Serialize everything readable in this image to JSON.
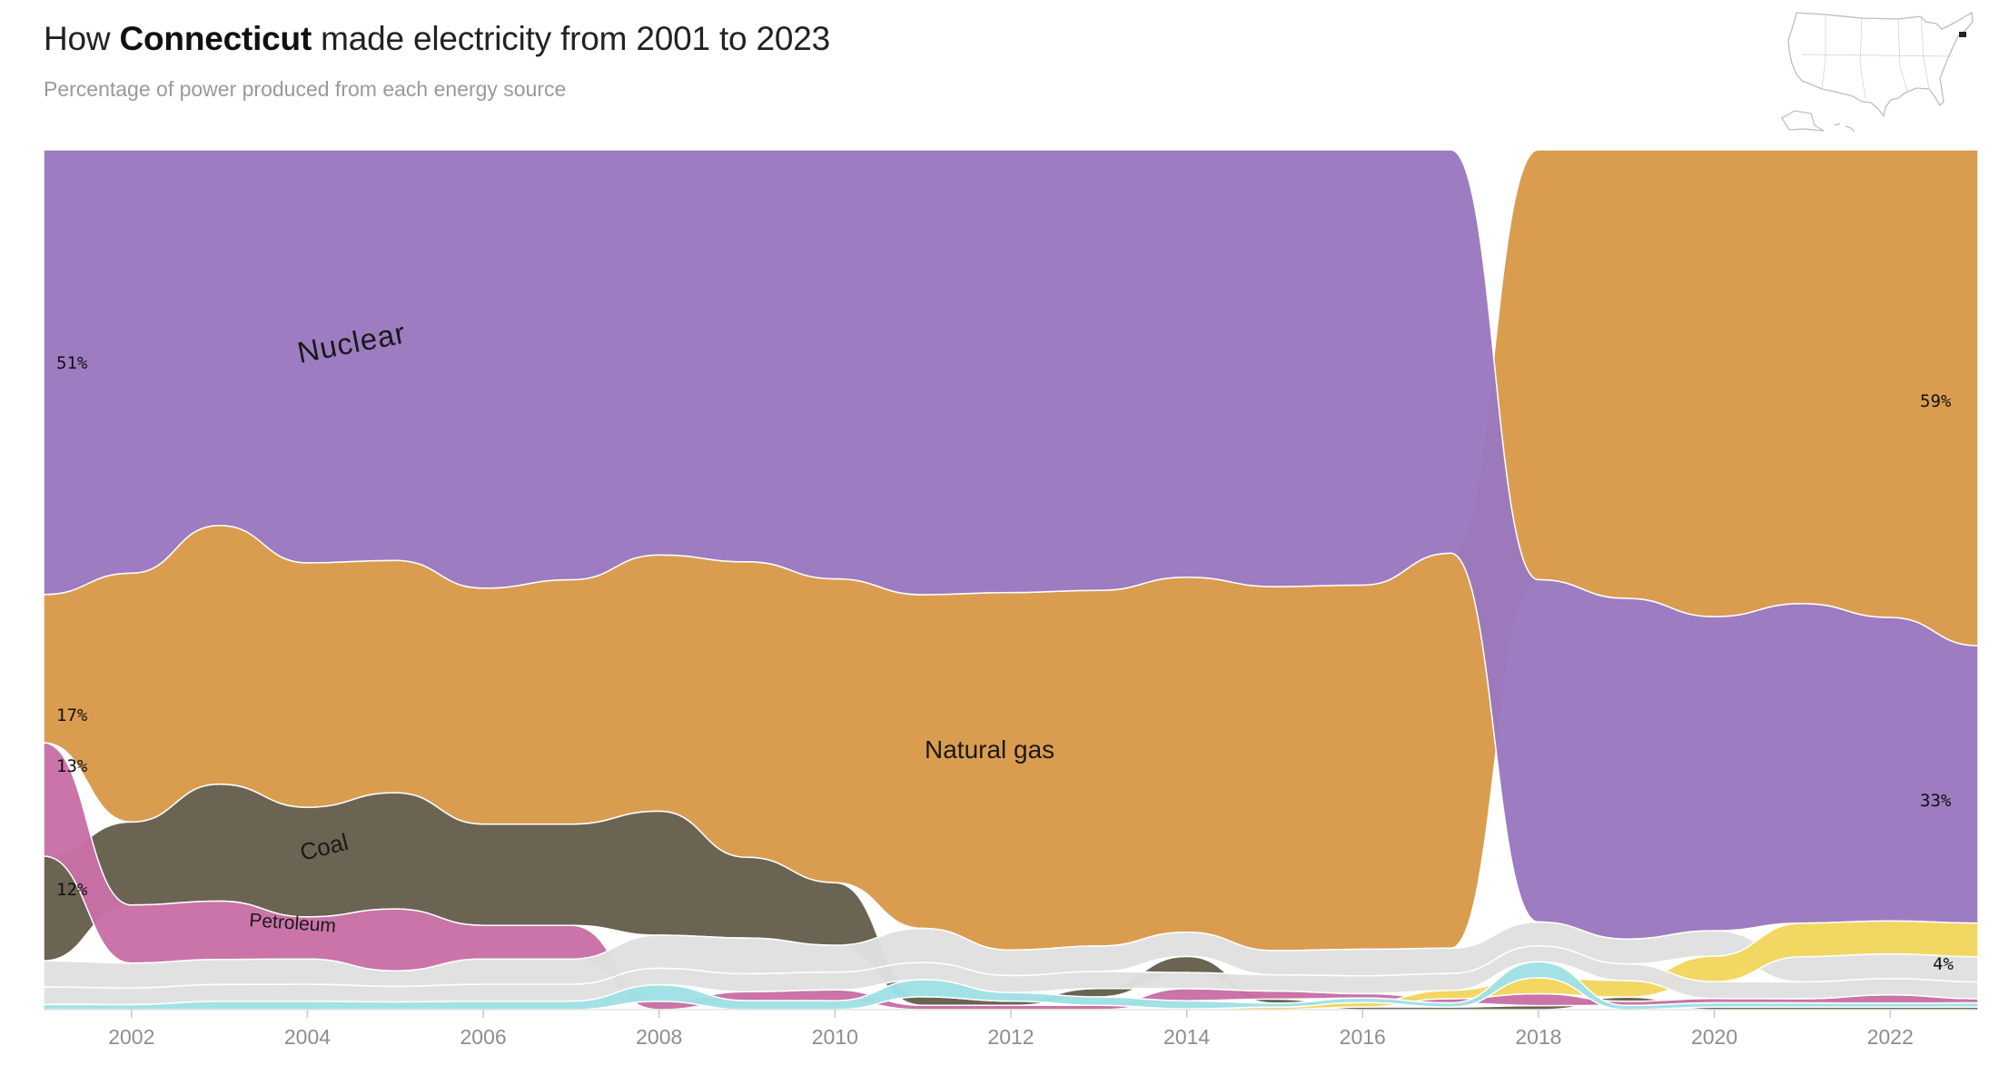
{
  "header": {
    "title_prefix": "How ",
    "title_state": "Connecticut",
    "title_suffix": " made electricity from 2001 to 2023",
    "subtitle": "Percentage of power produced from each energy source"
  },
  "locator_map": {
    "icon": "us-map-icon",
    "highlight": "Connecticut",
    "highlight_color": "#222222"
  },
  "chart_data": {
    "type": "area",
    "subtype": "ranked stacked area (bump)",
    "x": [
      2001,
      2002,
      2003,
      2004,
      2005,
      2006,
      2007,
      2008,
      2009,
      2010,
      2011,
      2012,
      2013,
      2014,
      2015,
      2016,
      2017,
      2018,
      2019,
      2020,
      2021,
      2022,
      2023
    ],
    "x_ticks": [
      "2002",
      "2004",
      "2006",
      "2008",
      "2010",
      "2012",
      "2014",
      "2016",
      "2018",
      "2020",
      "2022"
    ],
    "ylim": [
      0,
      100
    ],
    "unit": "%",
    "series": [
      {
        "name": "Nuclear",
        "color": "#9a78bf",
        "values": [
          51,
          51,
          45,
          49,
          53,
          52,
          51,
          49,
          46,
          48,
          52,
          52,
          52,
          53,
          54,
          49,
          48,
          43,
          41,
          37,
          38,
          37,
          33
        ]
      },
      {
        "name": "Natural gas",
        "color": "#d99a4a",
        "values": [
          17,
          30,
          31,
          29,
          30,
          28,
          29,
          31,
          33,
          34,
          39,
          42,
          42,
          44,
          45,
          41,
          47,
          54,
          54,
          55,
          54,
          57,
          59
        ]
      },
      {
        "name": "Coal",
        "color": "#665f4c",
        "values": [
          12,
          10,
          14,
          13,
          15,
          12,
          12,
          15,
          9,
          7,
          1,
          0.5,
          1,
          2,
          0.5,
          0.3,
          0.3,
          0.5,
          0.5,
          0.3,
          0.3,
          0.3,
          0.3
        ]
      },
      {
        "name": "Petroleum",
        "color": "#c86fa6",
        "values": [
          13,
          7,
          7,
          5,
          8,
          4,
          4,
          1,
          1,
          1.2,
          0.5,
          0.5,
          0.5,
          1.5,
          1,
          0.5,
          0.5,
          1.5,
          0.5,
          0.5,
          0.5,
          1,
          0.5
        ]
      },
      {
        "name": "",
        "color": "#e0e0e0",
        "values": [
          3,
          3,
          3,
          3,
          2,
          3,
          3,
          4,
          4,
          3,
          4,
          3,
          3,
          3,
          3,
          3,
          3,
          3,
          3,
          3,
          3,
          3,
          3
        ]
      },
      {
        "name": "",
        "color": "#e0e0e0",
        "values": [
          2,
          2,
          2,
          2,
          2,
          2,
          2,
          2,
          2,
          2,
          2,
          2,
          2,
          2,
          2,
          2,
          2,
          2,
          2,
          2,
          2,
          2,
          2
        ]
      },
      {
        "name": "",
        "color": "#9fe1e6",
        "values": [
          0.6,
          0.6,
          1,
          1,
          1,
          1,
          1,
          2,
          1,
          1,
          2,
          1,
          1,
          1,
          0.5,
          0.5,
          0.5,
          2,
          0.5,
          0.5,
          0.5,
          0.5,
          0.5
        ]
      },
      {
        "name": "",
        "color": "#f2d65e",
        "values": [
          0,
          0,
          0,
          0,
          0,
          0,
          0,
          0,
          0,
          0,
          0,
          0,
          0,
          0.1,
          0.3,
          0.5,
          1,
          2,
          2,
          3,
          4,
          4,
          4
        ]
      }
    ],
    "series_labels": [
      "Nuclear",
      "Natural gas",
      "Coal",
      "Petroleum"
    ],
    "value_labels": [
      "51%",
      "17%",
      "13%",
      "12%",
      "59%",
      "33%",
      "4%"
    ]
  }
}
